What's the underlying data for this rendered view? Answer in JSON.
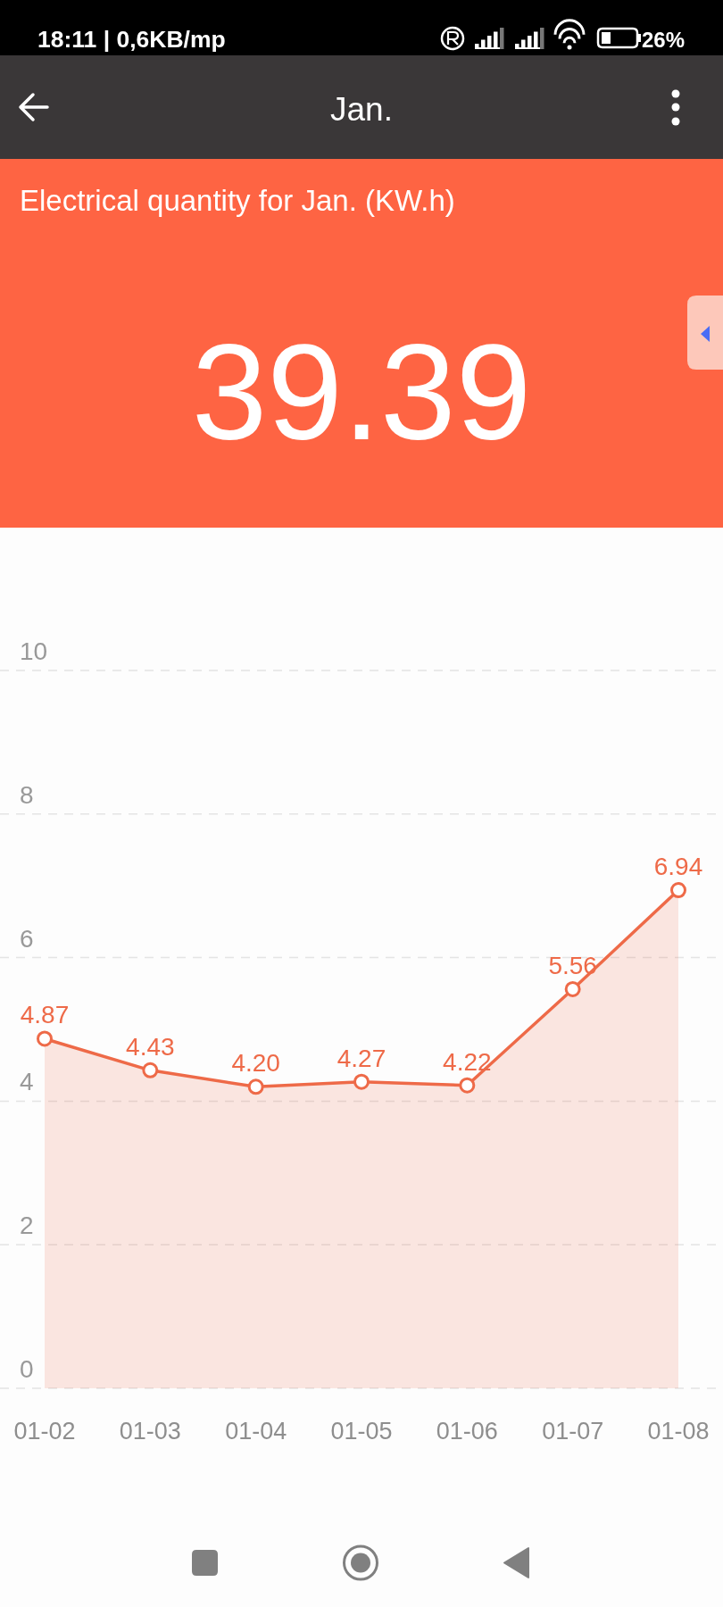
{
  "chart_data": {
    "type": "area",
    "title": "Jan.",
    "subtitle": "Electrical quantity for Jan. (KW.h)",
    "annotations": [
      "18:11 | 0,6KB/mp",
      "26%",
      "39.39"
    ],
    "categories": [
      "01-02",
      "01-03",
      "01-04",
      "01-05",
      "01-06",
      "01-07",
      "01-08"
    ],
    "series": [
      {
        "color": "#ee6a48",
        "values": [
          4.87,
          4.43,
          4.2,
          4.27,
          4.22,
          5.56,
          6.94
        ],
        "value_labels": [
          "4.87",
          "4.43",
          "4.20",
          "4.27",
          "4.22",
          "5.56",
          "6.94"
        ]
      }
    ],
    "ylim": [
      0,
      10
    ],
    "yticks": [
      0,
      2,
      4,
      6,
      8,
      10
    ],
    "grid": "y",
    "marker": "circle"
  }
}
